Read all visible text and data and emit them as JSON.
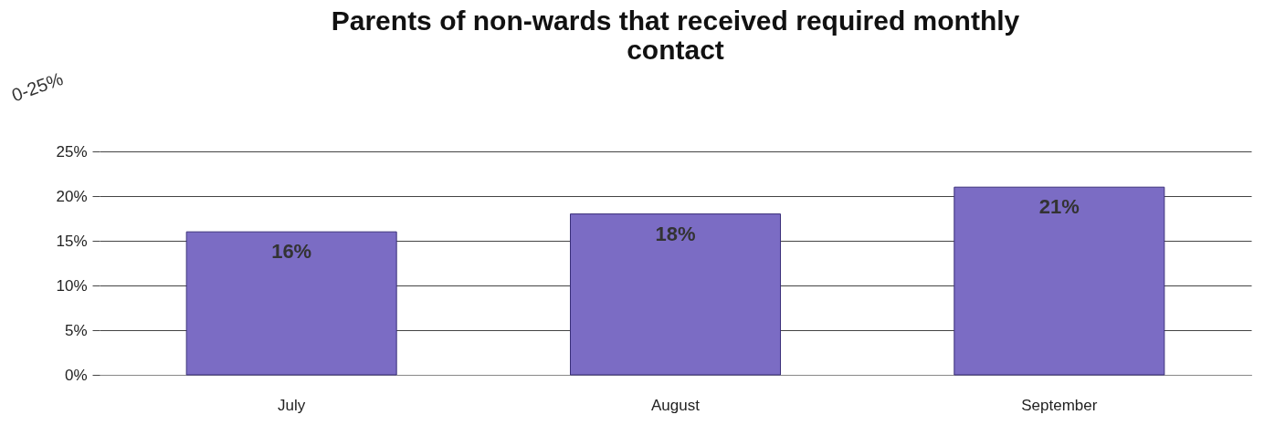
{
  "chart_data": {
    "type": "bar",
    "title": "Parents of non-wards that received required monthly contact",
    "categories": [
      "July",
      "August",
      "September"
    ],
    "series": [
      {
        "color": "#7b6cc4",
        "values": [
          16,
          18,
          21
        ]
      }
    ],
    "ylim": [
      0,
      25
    ],
    "yticks": [
      {
        "value": 0,
        "label": "0%"
      },
      {
        "value": 5,
        "label": "5%"
      },
      {
        "value": 10,
        "label": "10%"
      },
      {
        "value": 15,
        "label": "15%"
      },
      {
        "value": 20,
        "label": "20%"
      },
      {
        "value": 25,
        "label": "25%"
      }
    ],
    "value_labels": [
      "16%",
      "18%",
      "21%"
    ],
    "grid": "y",
    "annotations": [
      "0-25%"
    ]
  }
}
